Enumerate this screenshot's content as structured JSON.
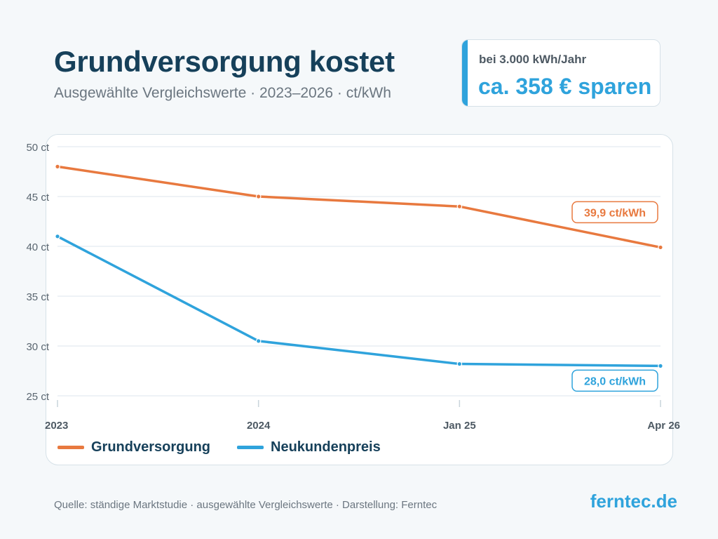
{
  "header": {
    "title": "Grundversorgung kostet",
    "subtitle": "Ausgewählte Vergleichswerte · 2023–2026 · ct/kWh"
  },
  "callout": {
    "line1": "bei 3.000 kWh/Jahr",
    "line2": "ca. 358 € sparen",
    "accent_color": "#2fa3dc"
  },
  "chart_data": {
    "type": "line",
    "categories": [
      "2023",
      "2024",
      "Jan 25",
      "Apr 26"
    ],
    "series": [
      {
        "name": "Grundversorgung",
        "color": "#e8793f",
        "values": [
          48.0,
          45.0,
          44.0,
          39.9
        ],
        "end_label": "39,9 ct/kWh"
      },
      {
        "name": "Neukundenpreis",
        "color": "#2fa3dc",
        "values": [
          41.0,
          30.5,
          28.2,
          28.0
        ],
        "end_label": "28,0 ct/kWh"
      }
    ],
    "ylim": [
      25,
      50
    ],
    "yticks": [
      25,
      30,
      35,
      40,
      45,
      50
    ],
    "ytick_labels": [
      "25 ct",
      "30 ct",
      "35 ct",
      "40 ct",
      "45 ct",
      "50 ct"
    ],
    "grid": true,
    "legend_position": "bottom-left"
  },
  "footer": {
    "source": "Quelle: ständige Marktstudie · ausgewählte Vergleichswerte · Darstellung: Ferntec",
    "brand": "ferntec.de"
  }
}
